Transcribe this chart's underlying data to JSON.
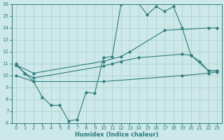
{
  "xlabel": "Humidex (Indice chaleur)",
  "xlim": [
    -0.5,
    23.5
  ],
  "ylim": [
    6,
    16
  ],
  "yticks": [
    6,
    7,
    8,
    9,
    10,
    11,
    12,
    13,
    14,
    15,
    16
  ],
  "xticks": [
    0,
    1,
    2,
    3,
    4,
    5,
    6,
    7,
    8,
    9,
    10,
    11,
    12,
    13,
    14,
    15,
    16,
    17,
    18,
    19,
    20,
    21,
    22,
    23
  ],
  "bg_color": "#cce8e8",
  "grid_color": "#aacccc",
  "line_color": "#2e7d7d",
  "line1_x": [
    0,
    1,
    2,
    3,
    4,
    5,
    6,
    7,
    8,
    9,
    10,
    11,
    12,
    13,
    14,
    15,
    16,
    17,
    18,
    19,
    20,
    21,
    22,
    23
  ],
  "line1_y": [
    11.0,
    10.2,
    9.5,
    8.2,
    7.5,
    7.5,
    6.2,
    6.3,
    8.6,
    8.5,
    11.5,
    11.6,
    16.0,
    16.3,
    16.1,
    15.1,
    15.8,
    15.4,
    15.8,
    14.0,
    11.7,
    11.2,
    10.4,
    10.4
  ],
  "line2_x": [
    0,
    2,
    10,
    12,
    13,
    17,
    22,
    23
  ],
  "line2_y": [
    10.9,
    10.2,
    11.2,
    11.6,
    12.0,
    13.8,
    14.0,
    14.0
  ],
  "line3_x": [
    0,
    1,
    2,
    10,
    11,
    12,
    14,
    19,
    20,
    22,
    23
  ],
  "line3_y": [
    10.9,
    10.2,
    9.8,
    10.8,
    11.0,
    11.2,
    11.5,
    11.8,
    11.7,
    10.4,
    10.4
  ],
  "line4_x": [
    0,
    2,
    10,
    19,
    22,
    23
  ],
  "line4_y": [
    10.0,
    9.5,
    9.5,
    10.0,
    10.2,
    10.3
  ]
}
